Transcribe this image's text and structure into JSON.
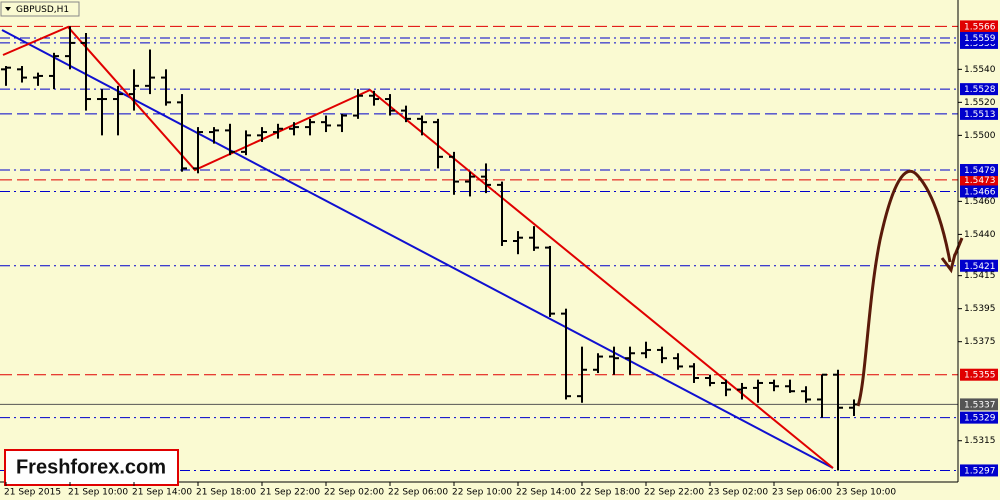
{
  "chart_data": {
    "type": "ohlc",
    "title": "GBPUSD,H1",
    "watermark": "Freshforex.com",
    "categories": [
      "21 Sep 2015",
      null,
      null,
      null,
      "21 Sep 10:00",
      null,
      null,
      null,
      "21 Sep 14:00",
      null,
      null,
      null,
      "21 Sep 18:00",
      null,
      null,
      null,
      "21 Sep 22:00",
      null,
      null,
      null,
      "22 Sep 02:00",
      null,
      null,
      null,
      "22 Sep 06:00",
      null,
      null,
      null,
      "22 Sep 10:00",
      null,
      null,
      null,
      "22 Sep 14:00",
      null,
      null,
      null,
      "22 Sep 18:00",
      null,
      null,
      null,
      "22 Sep 22:00",
      null,
      null,
      null,
      "23 Sep 02:00",
      null,
      null,
      null,
      "23 Sep 06:00",
      null,
      null,
      null,
      "23 Sep 10:00",
      null
    ],
    "open": [
      1.554,
      1.554,
      1.5535,
      1.5536,
      1.5548,
      1.5556,
      1.5522,
      1.5522,
      1.5525,
      1.553,
      1.5535,
      1.552,
      1.548,
      1.5502,
      1.5503,
      1.549,
      1.55,
      1.5502,
      1.5504,
      1.5505,
      1.5508,
      1.5506,
      1.5512,
      1.5524,
      1.5522,
      1.5515,
      1.551,
      1.5508,
      1.5487,
      1.5472,
      1.5475,
      1.547,
      1.5436,
      1.5438,
      1.5432,
      1.5392,
      1.5342,
      1.5358,
      1.5366,
      1.5365,
      1.5368,
      1.537,
      1.5365,
      1.536,
      1.5353,
      1.535,
      1.5346,
      1.5347,
      1.535,
      1.5348,
      1.5345,
      1.534,
      1.5355,
      1.5335
    ],
    "high": [
      1.5542,
      1.5542,
      1.5538,
      1.555,
      1.5566,
      1.5562,
      1.5528,
      1.553,
      1.554,
      1.5552,
      1.554,
      1.5525,
      1.5505,
      1.5505,
      1.5507,
      1.5503,
      1.5505,
      1.5507,
      1.5508,
      1.551,
      1.5512,
      1.5513,
      1.5528,
      1.5527,
      1.5525,
      1.5518,
      1.5512,
      1.551,
      1.549,
      1.5478,
      1.5483,
      1.5472,
      1.5442,
      1.5445,
      1.5433,
      1.5395,
      1.5372,
      1.5368,
      1.5372,
      1.5372,
      1.5375,
      1.5372,
      1.5368,
      1.5362,
      1.5355,
      1.5352,
      1.535,
      1.5352,
      1.5352,
      1.5352,
      1.5348,
      1.5355,
      1.5358,
      1.534
    ],
    "low": [
      1.553,
      1.5532,
      1.553,
      1.5528,
      1.554,
      1.5515,
      1.55,
      1.55,
      1.5515,
      1.5525,
      1.5518,
      1.5478,
      1.5477,
      1.5495,
      1.5488,
      1.5488,
      1.5496,
      1.5498,
      1.55,
      1.55,
      1.5502,
      1.5502,
      1.551,
      1.5518,
      1.5512,
      1.5508,
      1.55,
      1.548,
      1.5464,
      1.5463,
      1.5465,
      1.5433,
      1.5428,
      1.543,
      1.539,
      1.534,
      1.5338,
      1.5356,
      1.5355,
      1.5355,
      1.5365,
      1.5362,
      1.5358,
      1.535,
      1.5348,
      1.5342,
      1.534,
      1.5338,
      1.5345,
      1.5344,
      1.5338,
      1.5329,
      1.5297,
      1.533
    ],
    "close": [
      1.5541,
      1.5535,
      1.5536,
      1.5548,
      1.5556,
      1.5522,
      1.5522,
      1.5525,
      1.553,
      1.5535,
      1.552,
      1.548,
      1.5502,
      1.5503,
      1.549,
      1.55,
      1.5502,
      1.5504,
      1.5505,
      1.5508,
      1.5506,
      1.5512,
      1.5524,
      1.5522,
      1.5515,
      1.551,
      1.5508,
      1.5487,
      1.5472,
      1.5475,
      1.547,
      1.5436,
      1.5438,
      1.5432,
      1.5392,
      1.5342,
      1.5358,
      1.5366,
      1.5365,
      1.5368,
      1.537,
      1.5365,
      1.536,
      1.5353,
      1.535,
      1.5346,
      1.5347,
      1.535,
      1.5348,
      1.5345,
      1.534,
      1.5355,
      1.5335,
      1.5337
    ],
    "color": "#000000",
    "ylim": [
      1.529,
      1.5582
    ],
    "yticks": [
      {
        "value": 1.554,
        "label": "1.5540"
      },
      {
        "value": 1.552,
        "label": "1.5520"
      },
      {
        "value": 1.55,
        "label": "1.5500"
      },
      {
        "value": 1.546,
        "label": "1.5460"
      },
      {
        "value": 1.544,
        "label": "1.5440"
      },
      1.5415,
      1.5395,
      1.5375,
      1.5315
    ],
    "levels": [
      {
        "value": 1.5566,
        "color": "#e00000",
        "style": "dashed"
      },
      {
        "value": 1.5556,
        "color": "#0000cc",
        "style": "dashdot"
      },
      {
        "value": 1.5559,
        "color": "#0000cc",
        "style": "dashdot"
      },
      {
        "value": 1.5528,
        "color": "#0000cc",
        "style": "dashdot"
      },
      {
        "value": 1.5513,
        "color": "#0000cc",
        "style": "dashed"
      },
      {
        "value": 1.5473,
        "color": "#e00000",
        "style": "dashed"
      },
      {
        "value": 1.5479,
        "color": "#0000cc",
        "style": "dashdot"
      },
      {
        "value": 1.5466,
        "color": "#0000cc",
        "style": "dashdot"
      },
      {
        "value": 1.5421,
        "color": "#0000cc",
        "style": "dashdot"
      },
      {
        "value": 1.5355,
        "color": "#e00000",
        "style": "dashed"
      },
      {
        "value": 1.5329,
        "color": "#0000cc",
        "style": "dashdot"
      },
      {
        "value": 1.5337,
        "color": "#555555",
        "style": "solid"
      },
      {
        "value": 1.5297,
        "color": "#0000cc",
        "style": "dashdot"
      }
    ]
  }
}
